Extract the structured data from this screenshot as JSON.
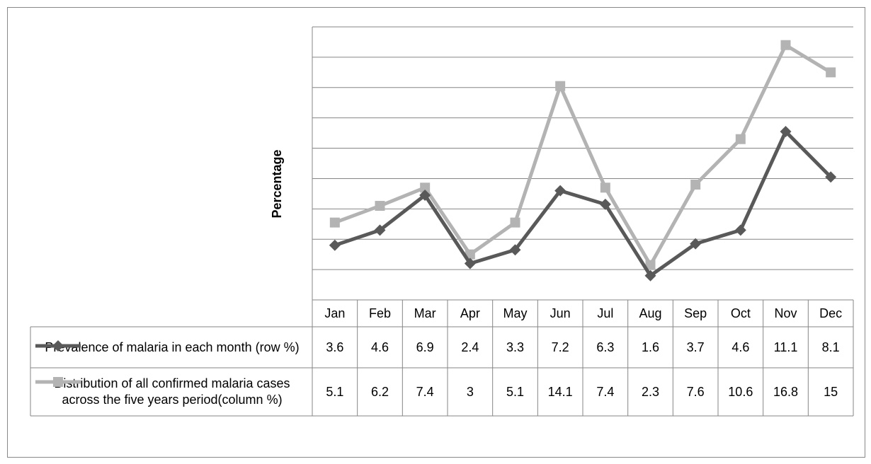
{
  "chart_data": {
    "type": "line",
    "y_label": "Percentage",
    "categories": [
      "Jan",
      "Feb",
      "Mar",
      "Apr",
      "May",
      "Jun",
      "Jul",
      "Aug",
      "Sep",
      "Oct",
      "Nov",
      "Dec"
    ],
    "series": [
      {
        "name": "Prevalence of malaria in each month (row %)",
        "color": "#595959",
        "marker": "diamond",
        "values": [
          3.6,
          4.6,
          6.9,
          2.4,
          3.3,
          7.2,
          6.3,
          1.6,
          3.7,
          4.6,
          11.1,
          8.1
        ]
      },
      {
        "name": "Distribution of all confirmed malaria cases across the five years period(column %)",
        "color": "#b3b3b3",
        "marker": "square",
        "values": [
          5.1,
          6.2,
          7.4,
          3,
          5.1,
          14.1,
          7.4,
          2.3,
          7.6,
          10.6,
          16.8,
          15
        ]
      }
    ],
    "ylim": [
      0,
      18
    ],
    "yticks": [
      0,
      2,
      4,
      6,
      8,
      10,
      12,
      14,
      16,
      18
    ],
    "grid": true,
    "data_table": true
  }
}
